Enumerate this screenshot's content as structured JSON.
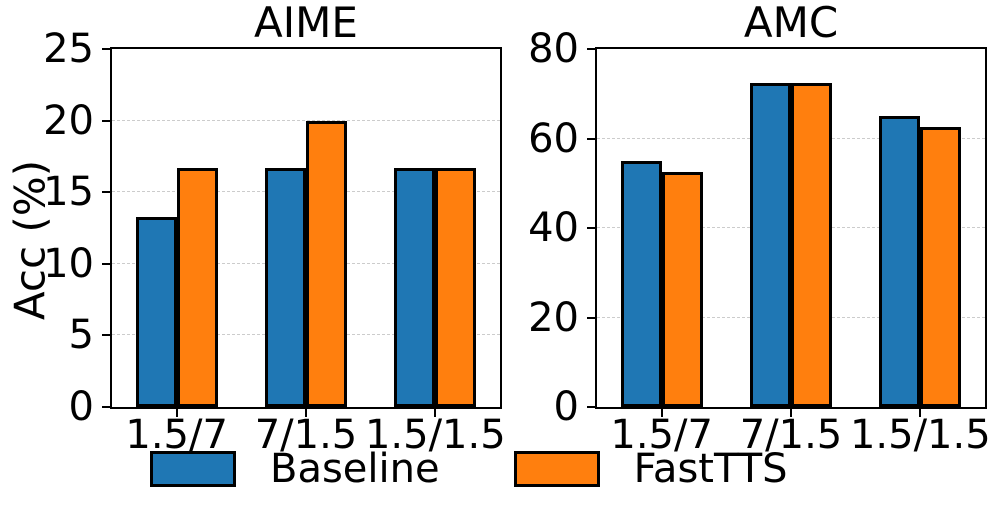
{
  "ylabel": "Acc (%)",
  "legend": [
    {
      "label": "Baseline",
      "color": "#1f77b4"
    },
    {
      "label": "FastTTS",
      "color": "#ff7f0e"
    }
  ],
  "chart_data": [
    {
      "type": "bar",
      "title": "AIME",
      "ylabel": "Acc (%)",
      "categories": [
        "1.5/7",
        "7/1.5",
        "1.5/1.5"
      ],
      "series": [
        {
          "name": "Baseline",
          "color": "#1f77b4",
          "values": [
            13.3,
            16.7,
            16.7
          ]
        },
        {
          "name": "FastTTS",
          "color": "#ff7f0e",
          "values": [
            16.7,
            20.0,
            16.7
          ]
        }
      ],
      "ylim": [
        0,
        25
      ],
      "yticks": [
        0,
        5,
        10,
        15,
        20,
        25
      ],
      "grid": "dashed-horizontal",
      "legend_position": "below"
    },
    {
      "type": "bar",
      "title": "AMC",
      "ylabel": "Acc (%)",
      "categories": [
        "1.5/7",
        "7/1.5",
        "1.5/1.5"
      ],
      "series": [
        {
          "name": "Baseline",
          "color": "#1f77b4",
          "values": [
            55.0,
            72.5,
            65.0
          ]
        },
        {
          "name": "FastTTS",
          "color": "#ff7f0e",
          "values": [
            52.5,
            72.5,
            62.5
          ]
        }
      ],
      "ylim": [
        0,
        80
      ],
      "yticks": [
        0,
        20,
        40,
        60,
        80
      ],
      "grid": "dashed-horizontal",
      "legend_position": "below"
    }
  ]
}
